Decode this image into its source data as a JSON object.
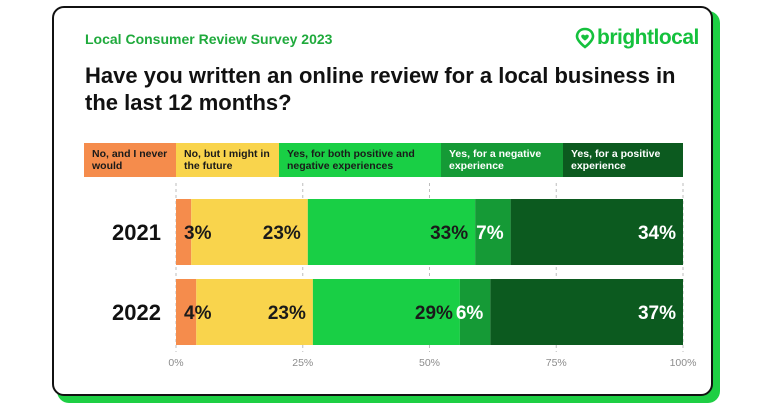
{
  "header": {
    "survey_label": "Local Consumer Review Survey 2023",
    "brand": "brightlocal",
    "question": "Have you written an online review for a local business in the last 12 months?"
  },
  "chart_data": {
    "type": "bar",
    "orientation": "horizontal",
    "stacked": true,
    "categories": [
      "2021",
      "2022"
    ],
    "series": [
      {
        "name": "No, and I never would",
        "color": "#f58c4c",
        "text_color": "#1a1a1a",
        "values": [
          3,
          4
        ]
      },
      {
        "name": "No, but I might in the future",
        "color": "#f9d44c",
        "text_color": "#1a1a1a",
        "values": [
          23,
          23
        ]
      },
      {
        "name": "Yes, for both positive and negative experiences",
        "color": "#19cf45",
        "text_color": "#1a1a1a",
        "values": [
          33,
          29
        ]
      },
      {
        "name": "Yes, for a negative experience",
        "color": "#159a36",
        "text_color": "#ffffff",
        "values": [
          7,
          6
        ]
      },
      {
        "name": "Yes, for a positive experience",
        "color": "#0c5a1f",
        "text_color": "#ffffff",
        "values": [
          34,
          37
        ]
      }
    ],
    "data_labels": [
      [
        "3%",
        "23%",
        "33%",
        "7%",
        "34%"
      ],
      [
        "4%",
        "23%",
        "29%",
        "6%",
        "37%"
      ]
    ],
    "xlim": [
      0,
      100
    ],
    "xticks": [
      "0%",
      "25%",
      "50%",
      "75%",
      "100%"
    ],
    "title": "Have you written an online review for a local business in the last 12 months?",
    "xlabel": "",
    "ylabel": ""
  }
}
